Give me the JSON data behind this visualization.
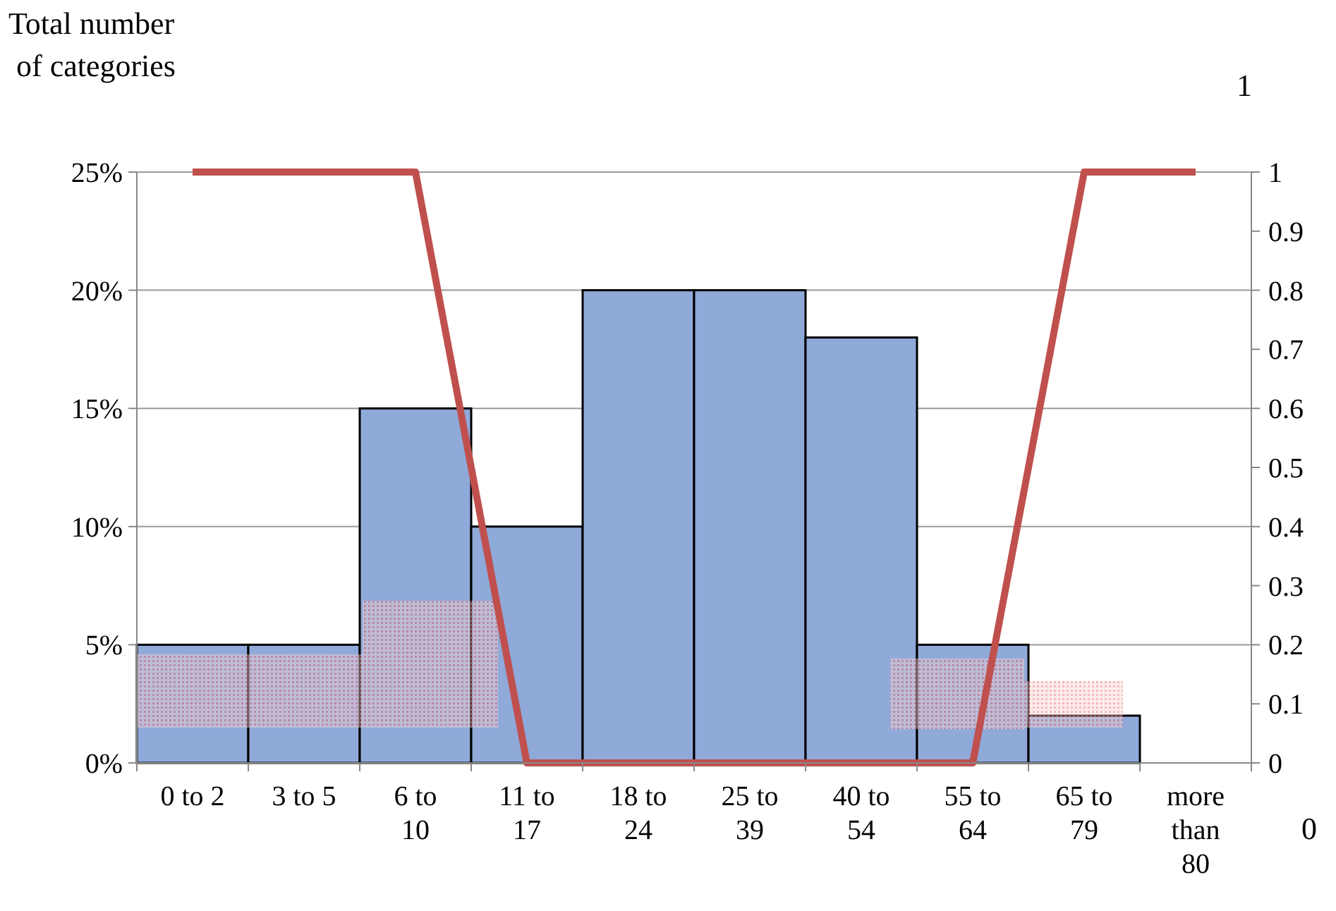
{
  "chart_data": {
    "type": "bar",
    "ylabel": "Total number\n of categories",
    "categories": [
      "0 to 2",
      "3 to 5",
      "6 to\n10",
      "11 to\n17",
      "18 to\n24",
      "25 to\n39",
      "40 to\n54",
      "55 to\n64",
      "65 to\n79",
      "more\nthan\n80"
    ],
    "series": [
      {
        "color": "#8fa9d9",
        "values": [
          5,
          5,
          15,
          10,
          20,
          20,
          18,
          5,
          2,
          null
        ]
      },
      {
        "type": "line",
        "axis": "y2",
        "color": "#c0504d",
        "values": [
          1,
          1,
          1,
          0,
          0,
          0,
          0,
          0,
          1,
          1
        ]
      }
    ],
    "ylim": [
      0,
      25
    ],
    "yticks": [
      {
        "value": 0,
        "label": "0%"
      },
      {
        "value": 5,
        "label": "5%"
      },
      {
        "value": 10,
        "label": "10%"
      },
      {
        "value": 15,
        "label": "15%"
      },
      {
        "value": 20,
        "label": "20%"
      },
      {
        "value": 25,
        "label": "25%"
      }
    ],
    "y2lim": [
      0,
      1
    ],
    "y2ticks": [
      0,
      0.1,
      0.2,
      0.3,
      0.4,
      0.5,
      0.6,
      0.7,
      0.8,
      0.9,
      1
    ],
    "grid": "y",
    "marker": "none",
    "line_style": "solid",
    "annotations": [
      "1",
      "0"
    ]
  }
}
